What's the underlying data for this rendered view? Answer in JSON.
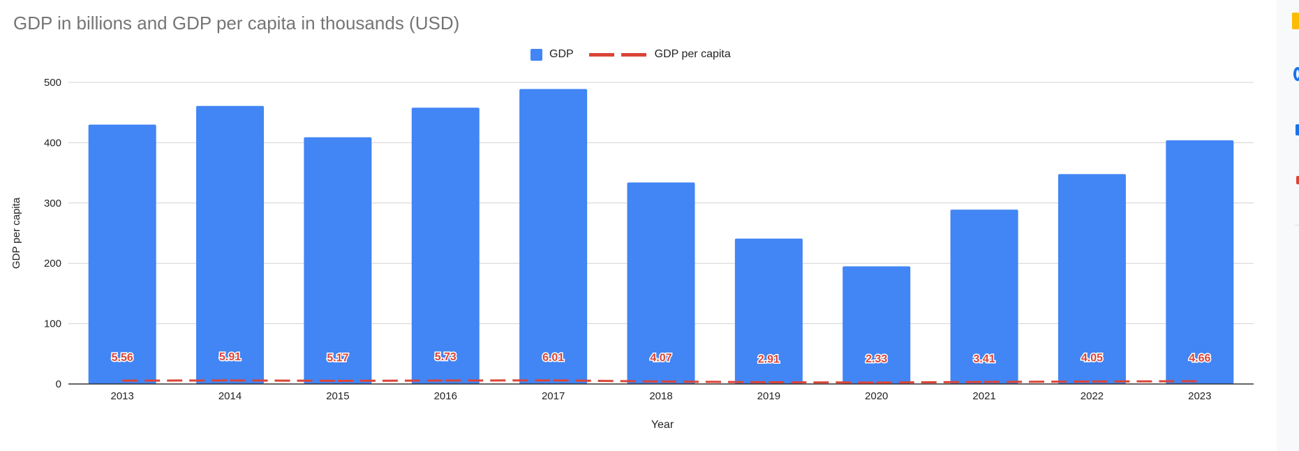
{
  "chart_data": {
    "type": "bar",
    "title": "GDP in billions and GDP per capita in thousands (USD)",
    "xlabel": "Year",
    "ylabel": "GDP per capita",
    "ylim": [
      0,
      500
    ],
    "yticks": [
      0,
      100,
      200,
      300,
      400,
      500
    ],
    "grid": true,
    "legend_position": "top",
    "categories": [
      "2013",
      "2014",
      "2015",
      "2016",
      "2017",
      "2018",
      "2019",
      "2020",
      "2021",
      "2022",
      "2023"
    ],
    "series": [
      {
        "name": "GDP",
        "type": "bar",
        "color": "#4285f4",
        "values": [
          430,
          461,
          409,
          458,
          489,
          334,
          241,
          195,
          289,
          348,
          404
        ]
      },
      {
        "name": "GDP per capita",
        "type": "line",
        "style": "dashed",
        "color": "#db4437",
        "values": [
          5.56,
          5.91,
          5.17,
          5.73,
          6.01,
          4.07,
          2.91,
          2.33,
          3.41,
          4.05,
          4.66
        ],
        "labels": [
          "5.56",
          "5.91",
          "5.17",
          "5.73",
          "6.01",
          "4.07",
          "2.91",
          "2.33",
          "3.41",
          "4.05",
          "4.66"
        ]
      }
    ]
  }
}
